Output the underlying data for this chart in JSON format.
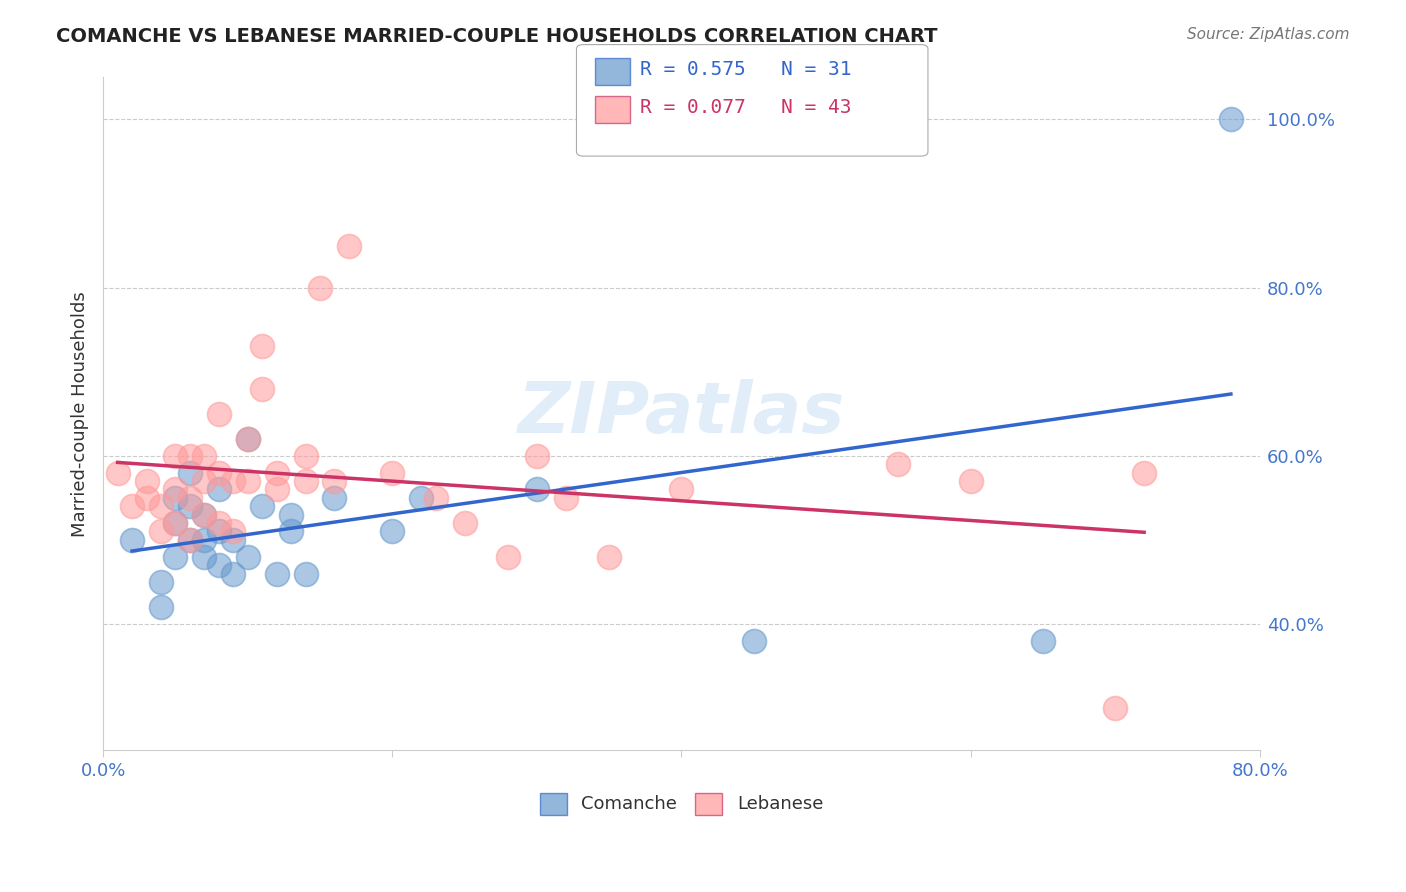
{
  "title": "COMANCHE VS LEBANESE MARRIED-COUPLE HOUSEHOLDS CORRELATION CHART",
  "source": "Source: ZipAtlas.com",
  "xlabel": "",
  "ylabel": "Married-couple Households",
  "xlim": [
    0.0,
    0.8
  ],
  "ylim": [
    0.0,
    1.05
  ],
  "x_ticks": [
    0.0,
    0.1,
    0.2,
    0.3,
    0.4,
    0.5,
    0.6,
    0.7,
    0.8
  ],
  "x_tick_labels": [
    "0.0%",
    "",
    "",
    "",
    "",
    "",
    "",
    "",
    "80.0%"
  ],
  "y_tick_labels_right": [
    "",
    "40.0%",
    "",
    "60.0%",
    "",
    "80.0%",
    "",
    "100.0%"
  ],
  "y_ticks_right": [
    0.3,
    0.4,
    0.5,
    0.6,
    0.7,
    0.8,
    0.9,
    1.0
  ],
  "comanche_R": 0.575,
  "comanche_N": 31,
  "lebanese_R": 0.077,
  "lebanese_N": 43,
  "comanche_color": "#6699CC",
  "lebanese_color": "#FF9999",
  "comanche_line_color": "#3366CC",
  "lebanese_line_color": "#CC3366",
  "watermark": "ZIPatlas",
  "comanche_x": [
    0.02,
    0.04,
    0.04,
    0.05,
    0.05,
    0.05,
    0.06,
    0.06,
    0.06,
    0.07,
    0.07,
    0.07,
    0.08,
    0.08,
    0.08,
    0.09,
    0.09,
    0.1,
    0.1,
    0.11,
    0.12,
    0.13,
    0.13,
    0.14,
    0.16,
    0.2,
    0.22,
    0.3,
    0.45,
    0.65,
    0.78
  ],
  "comanche_y": [
    0.5,
    0.42,
    0.45,
    0.48,
    0.52,
    0.55,
    0.5,
    0.54,
    0.58,
    0.48,
    0.5,
    0.53,
    0.47,
    0.51,
    0.56,
    0.46,
    0.5,
    0.48,
    0.62,
    0.54,
    0.46,
    0.51,
    0.53,
    0.46,
    0.55,
    0.51,
    0.55,
    0.56,
    0.38,
    0.38,
    1.0
  ],
  "lebanese_x": [
    0.01,
    0.02,
    0.03,
    0.03,
    0.04,
    0.04,
    0.05,
    0.05,
    0.05,
    0.06,
    0.06,
    0.06,
    0.07,
    0.07,
    0.07,
    0.08,
    0.08,
    0.08,
    0.09,
    0.09,
    0.1,
    0.1,
    0.11,
    0.11,
    0.12,
    0.12,
    0.14,
    0.14,
    0.15,
    0.16,
    0.17,
    0.2,
    0.23,
    0.25,
    0.28,
    0.3,
    0.32,
    0.35,
    0.4,
    0.55,
    0.6,
    0.7,
    0.72
  ],
  "lebanese_y": [
    0.58,
    0.54,
    0.55,
    0.57,
    0.51,
    0.54,
    0.52,
    0.56,
    0.6,
    0.5,
    0.55,
    0.6,
    0.53,
    0.57,
    0.6,
    0.52,
    0.58,
    0.65,
    0.51,
    0.57,
    0.57,
    0.62,
    0.68,
    0.73,
    0.56,
    0.58,
    0.57,
    0.6,
    0.8,
    0.57,
    0.85,
    0.58,
    0.55,
    0.52,
    0.48,
    0.6,
    0.55,
    0.48,
    0.56,
    0.59,
    0.57,
    0.3,
    0.58
  ],
  "grid_color": "#CCCCCC",
  "background_color": "#FFFFFF"
}
